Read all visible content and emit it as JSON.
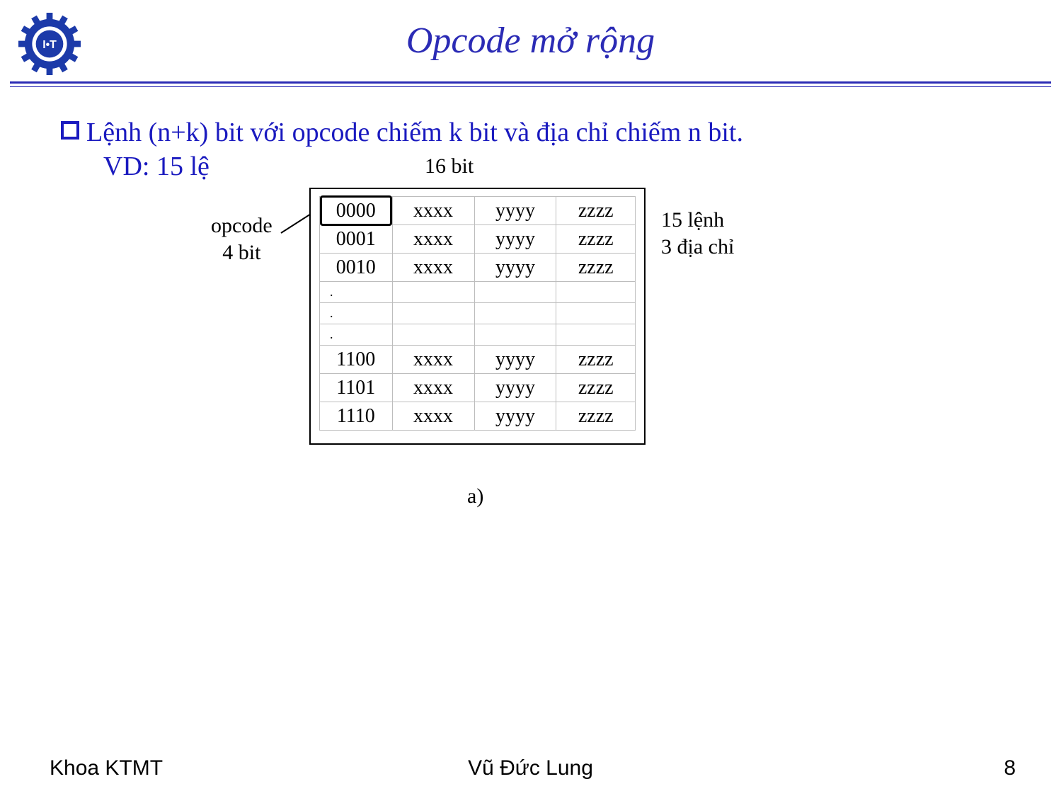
{
  "title": "Opcode mở rộng",
  "logo_text": "I•T",
  "colors": {
    "title": "#2b2bb5",
    "rule": "#2b2bb5",
    "bullet_text": "#1a1abf",
    "table_border": "#bdbdbd",
    "frame_border": "#000000",
    "background": "#ffffff"
  },
  "bullet": {
    "main": "Lệnh (n+k) bit với opcode chiếm k bit và địa chỉ chiếm n bit.",
    "sub": "VD: 15 lệ"
  },
  "figure": {
    "header_label": "16 bit",
    "left_label_line1": "opcode",
    "left_label_line2": "4 bit",
    "right_label_line1": "15 lệnh",
    "right_label_line2": "3 địa chỉ",
    "caption": "a)",
    "table": {
      "col_widths_pct": [
        23,
        26,
        26,
        25
      ],
      "rows": [
        {
          "cells": [
            "0000",
            "xxxx",
            "yyyy",
            "zzzz"
          ],
          "highlight_first": true
        },
        {
          "cells": [
            "0001",
            "xxxx",
            "yyyy",
            "zzzz"
          ]
        },
        {
          "cells": [
            "0010",
            "xxxx",
            "yyyy",
            "zzzz"
          ]
        },
        {
          "cells": [
            ".",
            "",
            "",
            ""
          ],
          "short": true
        },
        {
          "cells": [
            ".",
            "",
            "",
            ""
          ],
          "short": true
        },
        {
          "cells": [
            ".",
            "",
            "",
            ""
          ],
          "short": true
        },
        {
          "cells": [
            "1100",
            "xxxx",
            "yyyy",
            "zzzz"
          ]
        },
        {
          "cells": [
            "1101",
            "xxxx",
            "yyyy",
            "zzzz"
          ]
        },
        {
          "cells": [
            "1110",
            "xxxx",
            "yyyy",
            "zzzz"
          ]
        }
      ]
    }
  },
  "footer": {
    "dept": "Khoa KTMT",
    "author": "Vũ Đức Lung",
    "page": "8"
  }
}
